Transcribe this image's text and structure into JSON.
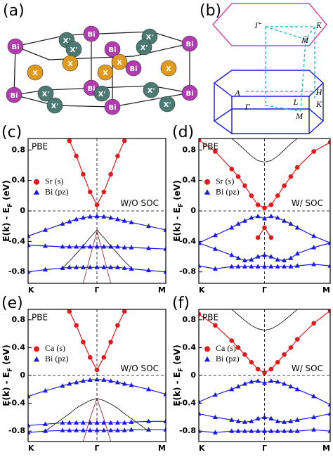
{
  "structure": {
    "label": "(a)",
    "atoms": [
      "Bi",
      "X'",
      "Bi",
      "X'",
      "X'",
      "Bi",
      "X'",
      "Bi",
      "X",
      "X",
      "X",
      "Bi",
      "X",
      "X",
      "X'",
      "Bi",
      "X'",
      "X'",
      "Bi",
      "Bi",
      "X'",
      "X'",
      "Bi"
    ]
  },
  "brillouin_zone": {
    "label": "(b)",
    "points": [
      "Γ̄",
      "K̄",
      "M̄",
      "A",
      "H",
      "L",
      "K",
      "M",
      "Γ"
    ]
  },
  "chart_data": [
    {
      "type": "line",
      "label": "(c)",
      "method": "PBE",
      "annotation": "W/O SOC",
      "ylabel": [
        "E(k) - E",
        "F",
        " (eV)"
      ],
      "xlim": [
        0,
        2
      ],
      "xticks": [
        {
          "value": 0,
          "label": "K"
        },
        {
          "value": 1,
          "label": "Γ"
        },
        {
          "value": 2,
          "label": "M"
        }
      ],
      "ylim": [
        -0.95,
        0.95
      ],
      "yticks": [
        0.8,
        0.4,
        0,
        -0.4,
        -0.8
      ],
      "x": [
        0,
        0.25,
        0.5,
        0.6,
        0.7,
        0.8,
        0.9,
        1,
        1.1,
        1.2,
        1.3,
        1.4,
        1.5,
        1.75,
        2
      ],
      "series": [
        {
          "name": "Sr (s)",
          "color": "#e41a1a",
          "marker": "circle",
          "values": [
            null,
            null,
            null,
            0.92,
            0.72,
            0.48,
            0.25,
            0.08,
            0.25,
            0.48,
            0.72,
            0.92,
            null,
            null,
            null
          ]
        },
        {
          "name": "Bi (pz)",
          "color": "#1a1ae4",
          "marker": "triangle",
          "values": [
            -0.33,
            -0.25,
            -0.17,
            -0.14,
            -0.11,
            -0.09,
            -0.075,
            -0.07,
            -0.075,
            -0.09,
            -0.11,
            -0.13,
            -0.15,
            -0.2,
            -0.25
          ]
        }
      ],
      "bands": [
        {
          "color": "#1a1ae4",
          "marker": "triangle",
          "values": [
            -0.45,
            -0.46,
            -0.47,
            -0.47,
            -0.47,
            -0.47,
            -0.47,
            -0.47,
            -0.47,
            -0.47,
            -0.47,
            -0.48,
            -0.48,
            -0.49,
            -0.5
          ]
        },
        {
          "color": "#1a1ae4",
          "marker": "triangle",
          "values": [
            -0.8,
            -0.77,
            -0.75,
            -0.74,
            -0.74,
            -0.74,
            -0.74,
            -0.74,
            -0.74,
            -0.74,
            -0.74,
            -0.75,
            -0.76,
            -0.78,
            -0.8
          ]
        },
        {
          "color": "#000000",
          "marker": "none",
          "values": [
            null,
            null,
            -0.75,
            -0.66,
            -0.56,
            -0.46,
            -0.35,
            -0.25,
            -0.35,
            -0.46,
            -0.56,
            -0.66,
            -0.75,
            null,
            null
          ]
        },
        {
          "color": "#8b1a1a",
          "marker": "none",
          "values": [
            null,
            null,
            null,
            null,
            null,
            -0.95,
            -0.6,
            -0.27,
            -0.6,
            -0.95,
            null,
            null,
            null,
            null,
            null
          ]
        }
      ]
    },
    {
      "type": "line",
      "label": "(d)",
      "method": "PBE",
      "annotation": "W/ SOC",
      "ylabel": [
        "E(k) - E",
        "F",
        " (eV)"
      ],
      "xlim": [
        0,
        2
      ],
      "xticks": [
        {
          "value": 0,
          "label": "K"
        },
        {
          "value": 1,
          "label": "Γ"
        },
        {
          "value": 2,
          "label": "M"
        }
      ],
      "ylim": [
        -0.95,
        0.95
      ],
      "yticks": [
        0.8,
        0.4,
        0,
        -0.4,
        -0.8
      ],
      "x": [
        0,
        0.25,
        0.5,
        0.6,
        0.7,
        0.8,
        0.9,
        1,
        1.1,
        1.2,
        1.3,
        1.4,
        1.5,
        1.75,
        2
      ],
      "series": [
        {
          "name": "Sr (s)",
          "color": "#e41a1a",
          "marker": "circle",
          "values": [
            0.93,
            0.78,
            0.55,
            0.45,
            0.33,
            0.2,
            0.08,
            0.04,
            0.08,
            0.2,
            0.33,
            0.45,
            0.57,
            0.78,
            0.9
          ]
        },
        {
          "name": "Bi (pz)",
          "color": "#1a1ae4",
          "marker": "triangle",
          "values": [
            -0.42,
            -0.32,
            -0.22,
            -0.17,
            -0.13,
            -0.09,
            -0.07,
            -0.1,
            -0.07,
            -0.09,
            -0.13,
            -0.17,
            -0.22,
            -0.33,
            -0.42
          ]
        }
      ],
      "bands": [
        {
          "color": "#000000",
          "marker": "none",
          "values": [
            null,
            null,
            0.95,
            0.88,
            0.8,
            0.72,
            0.66,
            0.64,
            0.66,
            0.72,
            0.8,
            0.88,
            0.95,
            null,
            null
          ]
        },
        {
          "color": "#e41a1a",
          "marker": "circle",
          "values": [
            null,
            null,
            null,
            null,
            null,
            null,
            -0.35,
            -0.22,
            -0.35,
            null,
            null,
            null,
            null,
            null,
            null
          ]
        },
        {
          "color": "#1a1ae4",
          "marker": "triangle",
          "values": [
            -0.42,
            -0.5,
            -0.58,
            -0.62,
            -0.65,
            -0.64,
            -0.6,
            -0.58,
            -0.6,
            -0.64,
            -0.65,
            -0.62,
            -0.56,
            -0.48,
            -0.42
          ]
        },
        {
          "color": "#1a1ae4",
          "marker": "triangle",
          "values": [
            -0.72,
            -0.76,
            -0.73,
            -0.73,
            -0.73,
            -0.73,
            -0.73,
            -0.73,
            -0.73,
            -0.73,
            -0.73,
            -0.73,
            -0.72,
            -0.7,
            -0.72
          ]
        }
      ]
    },
    {
      "type": "line",
      "label": "(e)",
      "method": "PBE",
      "annotation": "W/O SOC",
      "ylabel": [
        "E(k) - E",
        "F",
        " (eV)"
      ],
      "xlim": [
        0,
        2
      ],
      "xticks": [
        {
          "value": 0,
          "label": "K"
        },
        {
          "value": 1,
          "label": "Γ"
        },
        {
          "value": 2,
          "label": "M"
        }
      ],
      "ylim": [
        -0.95,
        0.95
      ],
      "yticks": [
        0.8,
        0.4,
        0,
        -0.4,
        -0.8
      ],
      "x": [
        0,
        0.25,
        0.5,
        0.6,
        0.7,
        0.8,
        0.9,
        1,
        1.1,
        1.2,
        1.3,
        1.4,
        1.5,
        1.75,
        2
      ],
      "series": [
        {
          "name": "Ca (s)",
          "color": "#e41a1a",
          "marker": "circle",
          "values": [
            null,
            null,
            null,
            0.92,
            0.72,
            0.48,
            0.26,
            0.08,
            0.26,
            0.48,
            0.72,
            0.92,
            null,
            null,
            null
          ]
        },
        {
          "name": "Bi (pz)",
          "color": "#1a1ae4",
          "marker": "triangle",
          "values": [
            -0.3,
            -0.22,
            -0.15,
            -0.12,
            -0.1,
            -0.08,
            -0.065,
            -0.06,
            -0.065,
            -0.08,
            -0.1,
            -0.12,
            -0.14,
            -0.2,
            -0.27
          ]
        }
      ],
      "bands": [
        {
          "color": "#1a1ae4",
          "marker": "triangle",
          "values": [
            -0.72,
            -0.7,
            -0.68,
            -0.68,
            -0.68,
            -0.68,
            -0.68,
            -0.68,
            -0.68,
            -0.68,
            -0.68,
            -0.68,
            -0.67,
            -0.66,
            -0.66
          ]
        },
        {
          "color": "#1a1ae4",
          "marker": "triangle",
          "values": [
            -0.82,
            -0.8,
            -0.79,
            -0.79,
            -0.79,
            -0.79,
            -0.79,
            -0.79,
            -0.79,
            -0.79,
            -0.79,
            -0.79,
            -0.78,
            -0.78,
            -0.78
          ]
        },
        {
          "color": "#000000",
          "marker": "none",
          "values": [
            null,
            -0.8,
            -0.62,
            -0.55,
            -0.47,
            -0.41,
            -0.36,
            -0.33,
            -0.36,
            -0.41,
            -0.47,
            -0.55,
            -0.62,
            -0.8,
            null
          ]
        },
        {
          "color": "#8b1a1a",
          "marker": "none",
          "values": [
            null,
            null,
            null,
            null,
            null,
            -0.95,
            -0.62,
            -0.33,
            -0.62,
            -0.95,
            null,
            null,
            null,
            null,
            null
          ]
        }
      ]
    },
    {
      "type": "line",
      "label": "(f)",
      "method": "PBE",
      "annotation": "W/ SOC",
      "ylabel": [
        "E(k) - E",
        "F",
        " (eV)"
      ],
      "xlim": [
        0,
        2
      ],
      "xticks": [
        {
          "value": 0,
          "label": "K"
        },
        {
          "value": 1,
          "label": "Γ"
        },
        {
          "value": 2,
          "label": "M"
        }
      ],
      "ylim": [
        -0.95,
        0.95
      ],
      "yticks": [
        0.8,
        0.4,
        0,
        -0.4,
        -0.8
      ],
      "x": [
        0,
        0.25,
        0.5,
        0.6,
        0.7,
        0.8,
        0.9,
        1,
        1.1,
        1.2,
        1.3,
        1.4,
        1.5,
        1.75,
        2
      ],
      "series": [
        {
          "name": "Ca (s)",
          "color": "#e41a1a",
          "marker": "circle",
          "values": [
            0.88,
            0.72,
            0.5,
            0.4,
            0.3,
            0.19,
            0.09,
            0.04,
            0.09,
            0.19,
            0.3,
            0.4,
            0.52,
            0.75,
            0.93
          ]
        },
        {
          "name": "Bi (pz)",
          "color": "#1a1ae4",
          "marker": "triangle",
          "values": [
            -0.38,
            -0.28,
            -0.2,
            -0.16,
            -0.12,
            -0.09,
            -0.08,
            -0.11,
            -0.08,
            -0.09,
            -0.12,
            -0.16,
            -0.2,
            -0.3,
            -0.42
          ]
        }
      ],
      "bands": [
        {
          "color": "#000000",
          "marker": "none",
          "values": [
            null,
            null,
            0.95,
            0.87,
            0.79,
            0.72,
            0.67,
            0.65,
            0.67,
            0.72,
            0.79,
            0.87,
            0.95,
            null,
            null
          ]
        },
        {
          "color": "#1a1ae4",
          "marker": "triangle",
          "values": [
            -0.55,
            -0.6,
            -0.64,
            -0.66,
            -0.67,
            -0.66,
            -0.62,
            -0.6,
            -0.62,
            -0.66,
            -0.67,
            -0.66,
            -0.64,
            -0.6,
            -0.55
          ]
        },
        {
          "color": "#1a1ae4",
          "marker": "triangle",
          "values": [
            -0.8,
            -0.82,
            -0.8,
            -0.8,
            -0.8,
            -0.8,
            -0.8,
            -0.8,
            -0.8,
            -0.8,
            -0.8,
            -0.8,
            -0.8,
            -0.78,
            -0.8
          ]
        }
      ]
    }
  ]
}
